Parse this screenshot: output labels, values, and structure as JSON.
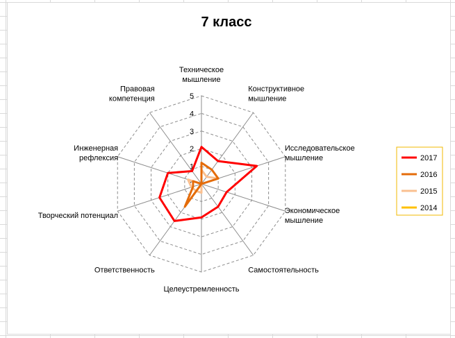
{
  "chart_data": {
    "type": "radar",
    "title": "7 класс",
    "categories": [
      [
        "Техническое",
        "мышление"
      ],
      [
        "Конструктивное",
        "мышление"
      ],
      [
        "Исследовательское",
        "мышление"
      ],
      [
        "Экономическое",
        "мышление"
      ],
      [
        "Самостоятельность"
      ],
      [
        "Целеустремленность"
      ],
      [
        "Ответственность"
      ],
      [
        "Творческий  потенциал"
      ],
      [
        "Инженерная",
        "рефлексия"
      ],
      [
        "Правовая",
        "компетенция"
      ]
    ],
    "rlim": [
      0,
      5
    ],
    "ticks": [
      "0",
      "1",
      "2",
      "3",
      "4",
      "5"
    ],
    "grid": true,
    "legend_position": "right",
    "series": [
      {
        "name": "2017",
        "color": "#ff0000",
        "values": [
          2.1,
          1.6,
          3.3,
          1.5,
          1.6,
          1.9,
          2.6,
          2.5,
          2.0,
          0.9
        ]
      },
      {
        "name": "2016",
        "color": "#e46c0a",
        "values": [
          1.2,
          1.0,
          1.0,
          0.0,
          0.0,
          0.0,
          1.6,
          0.5,
          0.5,
          0.0
        ]
      },
      {
        "name": "2015",
        "color": "#fac090",
        "values": [
          0.8,
          0.5,
          1.0,
          0.0,
          0.0,
          0.5,
          0.5,
          0.6,
          0.8,
          0.0
        ]
      },
      {
        "name": "2014",
        "color": "#ffc000",
        "values": [
          0.0,
          0.0,
          0.0,
          0.0,
          0.0,
          0.0,
          0.7,
          0.0,
          0.0,
          0.0
        ]
      }
    ]
  }
}
